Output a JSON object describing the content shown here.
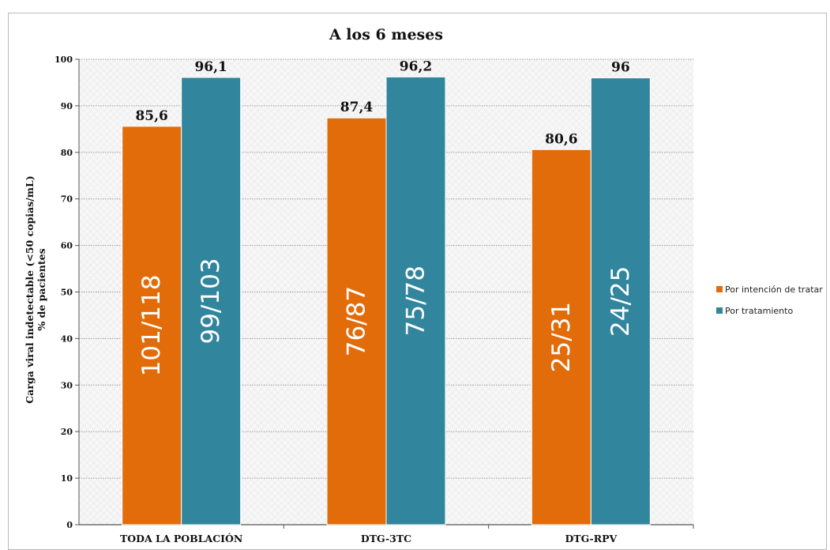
{
  "chart_data": {
    "type": "bar",
    "title": "A los 6 meses",
    "ylabel_line1": "Carga viral indetectable (<50 copias/mL)",
    "ylabel_line2": "% de pacientes",
    "xlabel": "",
    "ylim": [
      0,
      100
    ],
    "yticks": [
      0,
      10,
      20,
      30,
      40,
      50,
      60,
      70,
      80,
      90,
      100
    ],
    "grid": true,
    "legend_position": "right",
    "categories": [
      "TODA LA POBLACIÓN",
      "DTG-3TC",
      "DTG-RPV"
    ],
    "series": [
      {
        "name": "Por intención de tratar",
        "color": "#e36c0a",
        "values": [
          85.6,
          87.4,
          80.6
        ],
        "value_labels": [
          "85,6",
          "87,4",
          "80,6"
        ],
        "inner_labels": [
          "101/118",
          "76/87",
          "25/31"
        ]
      },
      {
        "name": "Por tratamiento",
        "color": "#31859c",
        "values": [
          96.1,
          96.2,
          96
        ],
        "value_labels": [
          "96,1",
          "96,2",
          "96"
        ],
        "inner_labels": [
          "99/103",
          "75/78",
          "24/25"
        ]
      }
    ]
  }
}
